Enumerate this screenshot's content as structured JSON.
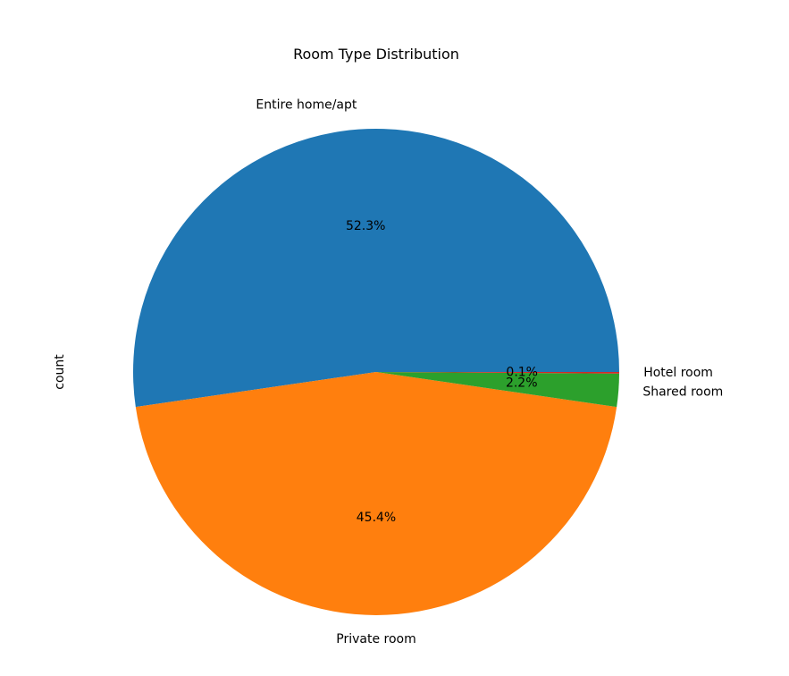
{
  "chart_data": {
    "type": "pie",
    "title": "Room Type Distribution",
    "ylabel": "count",
    "start_angle_deg": 0,
    "direction": "counterclockwise",
    "slices": [
      {
        "name": "Entire home/apt",
        "value": 52.3,
        "pct_label": "52.3%",
        "color": "#1f77b4"
      },
      {
        "name": "Private room",
        "value": 45.4,
        "pct_label": "45.4%",
        "color": "#ff7f0e"
      },
      {
        "name": "Shared room",
        "value": 2.2,
        "pct_label": "2.2%",
        "color": "#2ca02c"
      },
      {
        "name": "Hotel room",
        "value": 0.1,
        "pct_label": "0.1%",
        "color": "#d62728"
      }
    ]
  }
}
